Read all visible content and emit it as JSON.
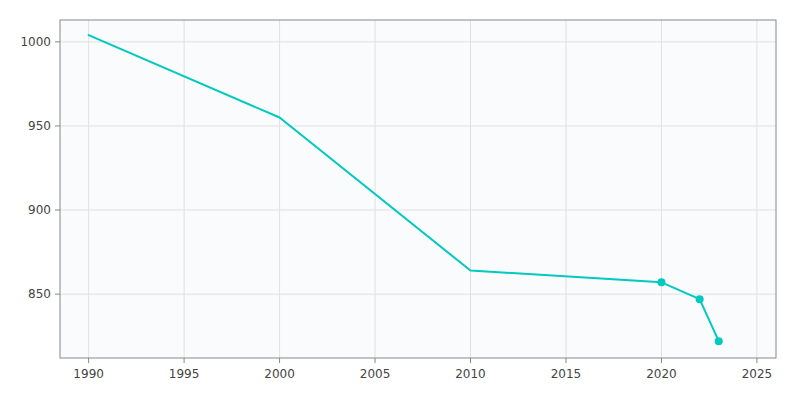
{
  "chart_data": {
    "type": "line",
    "series": [
      {
        "x": [
          1990,
          2000,
          2010,
          2020,
          2022,
          2023
        ],
        "values": [
          1004,
          955,
          864,
          857,
          847,
          822
        ],
        "color": "#00c9c0"
      },
      {
        "type": "scatter",
        "marker": "circle",
        "x": [
          2020,
          2022,
          2023
        ],
        "values": [
          857,
          847,
          822
        ],
        "color": "#00c9c0"
      }
    ],
    "xlim": [
      1988.5,
      2026
    ],
    "ylim": [
      812,
      1013
    ],
    "xticks": [
      1990,
      1995,
      2000,
      2005,
      2010,
      2015,
      2020,
      2025
    ],
    "yticks": [
      850,
      900,
      950,
      1000
    ],
    "grid": true
  }
}
